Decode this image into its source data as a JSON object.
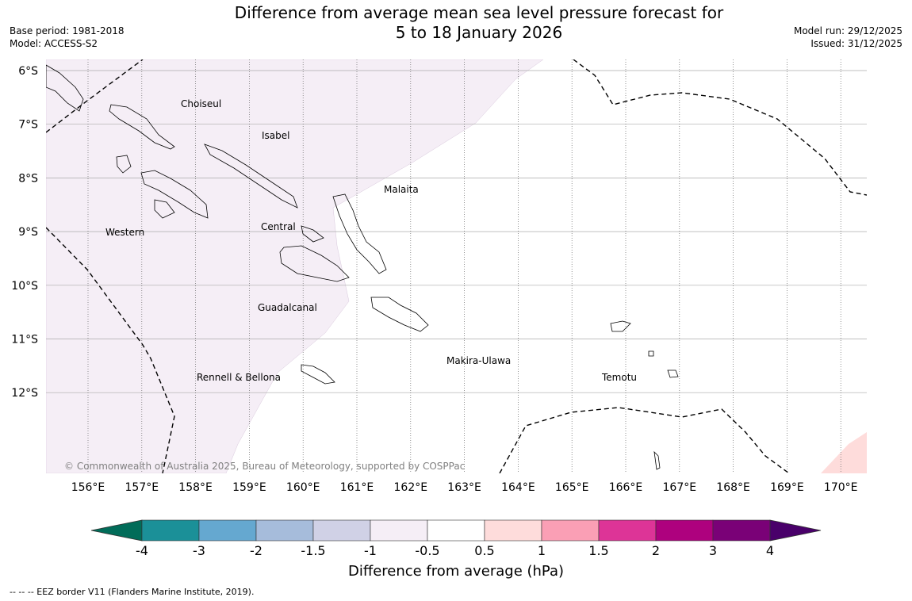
{
  "header": {
    "title_line1": "Difference from average mean sea level pressure forecast for",
    "title_line2": "5 to 18 January 2026",
    "base_period": "Base period: 1981-2018",
    "model": "Model: ACCESS-S2",
    "model_run": "Model run: 29/12/2025",
    "issued": "Issued: 31/12/2025"
  },
  "map": {
    "lat_labels": [
      "6°S",
      "7°S",
      "8°S",
      "9°S",
      "10°S",
      "11°S",
      "12°S"
    ],
    "lon_labels": [
      "156°E",
      "157°E",
      "158°E",
      "159°E",
      "160°E",
      "161°E",
      "162°E",
      "163°E",
      "164°E",
      "165°E",
      "166°E",
      "167°E",
      "168°E",
      "169°E",
      "170°E"
    ],
    "province_labels": [
      "Choiseul",
      "Isabel",
      "Malaita",
      "Western",
      "Central",
      "Guadalcanal",
      "Makira-Ulawa",
      "Rennell & Bellona",
      "Temotu"
    ],
    "copyright": "© Commonwealth of Australia 2025, Bureau of Meteorology, supported by COSPPac"
  },
  "colorbar": {
    "label": "Difference from average (hPa)",
    "ticks": [
      "-4",
      "-3",
      "-2",
      "-1.5",
      "-1",
      "-0.5",
      "0.5",
      "1",
      "1.5",
      "2",
      "3",
      "4"
    ],
    "colors": [
      "#1b9098",
      "#65a8d0",
      "#a6bcdb",
      "#d0d1e6",
      "#f5eef6",
      "#ffffff",
      "#fedcdb",
      "#fa9fb5",
      "#dd3497",
      "#ae017e",
      "#7a0177"
    ],
    "under_color": "#016c59",
    "over_color": "#49006a"
  },
  "footer": {
    "eez_note": "--  --  -- EEZ border V11 (Flanders Marine Institute, 2019)."
  },
  "colors": {
    "lavender": "#f5eef6",
    "pink": "#fedcdb"
  }
}
